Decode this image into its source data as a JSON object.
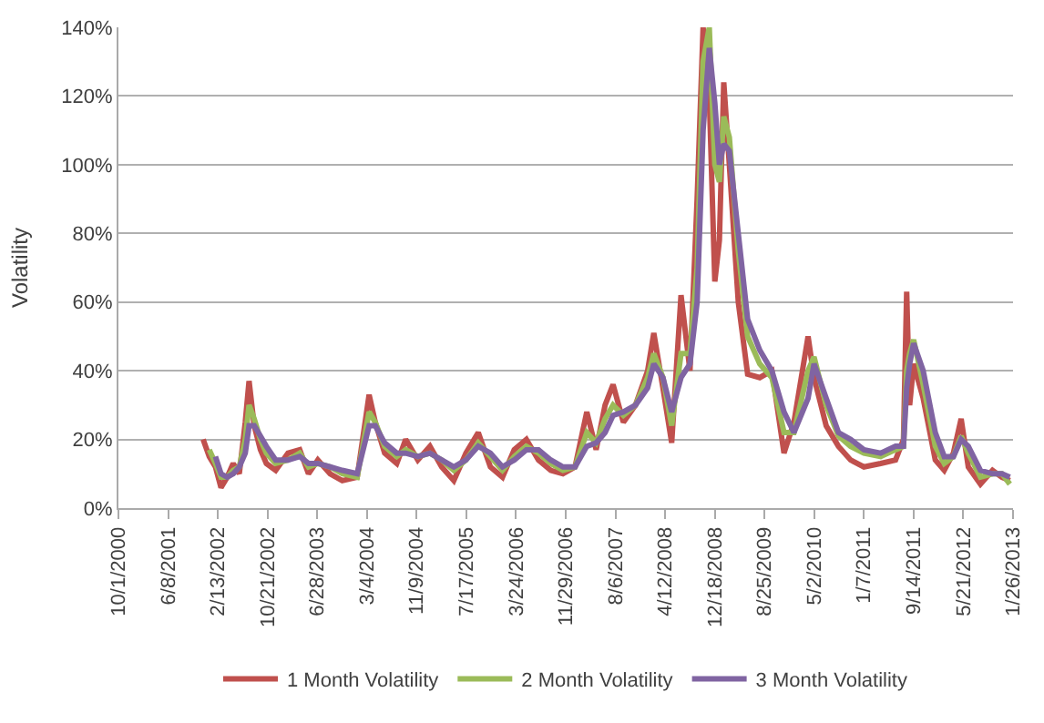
{
  "chart_data": {
    "type": "line",
    "ylabel": "Volatility",
    "x": [
      "2001-12-01",
      "2002-01-01",
      "2002-02-01",
      "2002-03-01",
      "2002-04-01",
      "2002-05-01",
      "2002-06-01",
      "2002-07-01",
      "2002-07-20",
      "2002-08-15",
      "2002-09-15",
      "2002-10-15",
      "2002-12-01",
      "2003-02-01",
      "2003-04-01",
      "2003-05-15",
      "2003-07-01",
      "2003-09-01",
      "2003-11-01",
      "2004-01-15",
      "2004-03-15",
      "2004-04-15",
      "2004-06-01",
      "2004-08-01",
      "2004-09-15",
      "2004-11-15",
      "2005-01-15",
      "2005-03-15",
      "2005-05-15",
      "2005-07-15",
      "2005-09-15",
      "2005-11-15",
      "2006-01-15",
      "2006-03-15",
      "2006-05-15",
      "2006-07-15",
      "2006-09-15",
      "2006-11-15",
      "2007-01-15",
      "2007-03-15",
      "2007-05-01",
      "2007-06-15",
      "2007-07-25",
      "2007-09-15",
      "2007-11-15",
      "2008-01-15",
      "2008-02-15",
      "2008-04-01",
      "2008-05-15",
      "2008-07-01",
      "2008-08-15",
      "2008-09-20",
      "2008-10-20",
      "2008-11-20",
      "2008-12-18",
      "2009-01-10",
      "2009-02-01",
      "2009-03-01",
      "2009-04-15",
      "2009-06-01",
      "2009-08-01",
      "2009-10-01",
      "2009-12-01",
      "2010-01-20",
      "2010-04-01",
      "2010-05-01",
      "2010-07-01",
      "2010-09-01",
      "2010-11-01",
      "2011-01-07",
      "2011-04-01",
      "2011-06-15",
      "2011-07-25",
      "2011-08-10",
      "2011-08-25",
      "2011-09-14",
      "2011-11-01",
      "2012-01-01",
      "2012-02-15",
      "2012-04-01",
      "2012-05-10",
      "2012-06-15",
      "2012-08-15",
      "2012-10-15",
      "2012-12-01",
      "2013-01-10"
    ],
    "series": [
      {
        "name": "1 Month Volatility",
        "color": "#c0504d",
        "values": [
          20,
          15,
          12,
          6,
          9,
          13,
          10,
          25,
          37,
          24,
          17,
          13,
          11,
          16,
          17,
          10,
          14,
          10,
          8,
          9,
          33,
          25,
          16,
          13,
          20,
          14,
          18,
          12,
          8,
          16,
          22,
          12,
          9,
          17,
          20,
          14,
          11,
          10,
          12,
          28,
          17,
          30,
          36,
          25,
          30,
          40,
          51,
          35,
          19,
          62,
          40,
          90,
          140,
          120,
          66,
          78,
          124,
          100,
          60,
          39,
          38,
          40,
          16,
          25,
          50,
          38,
          24,
          18,
          14,
          12,
          13,
          14,
          20,
          63,
          30,
          42,
          32,
          14,
          11,
          16,
          26,
          12,
          7,
          11,
          9,
          8
        ]
      },
      {
        "name": "2 Month Volatility",
        "color": "#9bbb59",
        "values": [
          null,
          17,
          13,
          9,
          9,
          11,
          12,
          20,
          30,
          26,
          20,
          16,
          13,
          14,
          16,
          12,
          13,
          12,
          10,
          9,
          28,
          25,
          18,
          15,
          17,
          15,
          16,
          14,
          11,
          14,
          19,
          15,
          11,
          15,
          18,
          16,
          13,
          11,
          12,
          22,
          19,
          26,
          30,
          27,
          30,
          38,
          45,
          38,
          24,
          45,
          45,
          70,
          130,
          140,
          100,
          95,
          114,
          108,
          75,
          50,
          42,
          38,
          22,
          22,
          40,
          44,
          30,
          21,
          18,
          16,
          15,
          17,
          18,
          40,
          45,
          49,
          36,
          18,
          13,
          15,
          21,
          16,
          9,
          10,
          10,
          7
        ]
      },
      {
        "name": "3 Month Volatility",
        "color": "#8064a2",
        "values": [
          null,
          null,
          15,
          10,
          9,
          10,
          12,
          16,
          24,
          24,
          21,
          18,
          14,
          14,
          15,
          13,
          13,
          12,
          11,
          10,
          24,
          24,
          19,
          16,
          16,
          15,
          16,
          14,
          12,
          14,
          18,
          16,
          12,
          14,
          17,
          17,
          14,
          12,
          12,
          18,
          19,
          22,
          27,
          28,
          30,
          35,
          42,
          38,
          28,
          38,
          42,
          60,
          110,
          134,
          118,
          100,
          106,
          104,
          80,
          55,
          46,
          40,
          28,
          22,
          32,
          42,
          32,
          22,
          20,
          17,
          16,
          18,
          18,
          35,
          42,
          48,
          40,
          22,
          15,
          15,
          20,
          18,
          11,
          10,
          10,
          9
        ]
      }
    ],
    "xlim": [
      "2000-10-01",
      "2013-01-26"
    ],
    "xticks": [
      {
        "value": "2000-10-01",
        "label": "10/1/2000"
      },
      {
        "value": "2001-06-08",
        "label": "6/8/2001"
      },
      {
        "value": "2002-02-13",
        "label": "2/13/2002"
      },
      {
        "value": "2002-10-21",
        "label": "10/21/2002"
      },
      {
        "value": "2003-06-28",
        "label": "6/28/2003"
      },
      {
        "value": "2004-03-04",
        "label": "3/4/2004"
      },
      {
        "value": "2004-11-09",
        "label": "11/9/2004"
      },
      {
        "value": "2005-07-17",
        "label": "7/17/2005"
      },
      {
        "value": "2006-03-24",
        "label": "3/24/2006"
      },
      {
        "value": "2006-11-29",
        "label": "11/29/2006"
      },
      {
        "value": "2007-08-06",
        "label": "8/6/2007"
      },
      {
        "value": "2008-04-12",
        "label": "4/12/2008"
      },
      {
        "value": "2008-12-18",
        "label": "12/18/2008"
      },
      {
        "value": "2009-08-25",
        "label": "8/25/2009"
      },
      {
        "value": "2010-05-02",
        "label": "5/2/2010"
      },
      {
        "value": "2011-01-07",
        "label": "1/7/2011"
      },
      {
        "value": "2011-09-14",
        "label": "9/14/2011"
      },
      {
        "value": "2012-05-21",
        "label": "5/21/2012"
      },
      {
        "value": "2013-01-26",
        "label": "1/26/2013"
      }
    ],
    "ylim": [
      0,
      140
    ],
    "yticks": [
      {
        "value": 0,
        "label": "0%"
      },
      {
        "value": 20,
        "label": "20%"
      },
      {
        "value": 40,
        "label": "40%"
      },
      {
        "value": 60,
        "label": "60%"
      },
      {
        "value": 80,
        "label": "80%"
      },
      {
        "value": 100,
        "label": "100%"
      },
      {
        "value": 120,
        "label": "120%"
      },
      {
        "value": 140,
        "label": "140%"
      }
    ],
    "grid": "y",
    "legend": "bottom",
    "marker": "none",
    "line_style": "solid"
  }
}
